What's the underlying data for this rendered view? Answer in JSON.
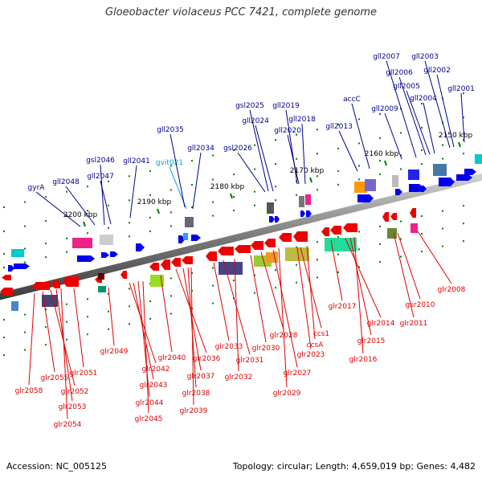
{
  "title": "Gloeobacter violaceus PCC 7421, complete genome",
  "footer": {
    "accession": "Accession: NC_005125",
    "summary": "Topology: circular; Length: 4,659,019 bp; Genes: 4,482"
  },
  "colors": {
    "forward_label": "#00008b",
    "reverse_label": "#e00000",
    "rna_label": "#00a0e0",
    "forward_gene": "#0000ee",
    "reverse_gene": "#ee0000",
    "tick": "#008000",
    "backbone": "#7a7a7a"
  },
  "scale": [
    {
      "label": "2200 kbp"
    },
    {
      "label": "2190 kbp"
    },
    {
      "label": "2180 kbp"
    },
    {
      "label": "2170 kbp"
    },
    {
      "label": "2160 kbp"
    },
    {
      "label": "2150 kbp"
    }
  ],
  "forward_genes": [
    "gyrA",
    "gll2048",
    "gsl2046",
    "gll2047",
    "gll2041",
    "gvit021",
    "gll2035",
    "gll2034",
    "gsl2026",
    "gsl2025",
    "gll2024",
    "gll2019",
    "gll2018",
    "gll2020",
    "gll2013",
    "accC",
    "gll2009",
    "gll2007",
    "gll2006",
    "gll2005",
    "gll2004",
    "gll2003",
    "gll2002",
    "gll2001"
  ],
  "reverse_genes": [
    "glr2058",
    "glr2055",
    "glr2052",
    "glr2053",
    "glr2054",
    "glr2051",
    "glr2049",
    "glr2042",
    "glr2043",
    "glr2044",
    "glr2045",
    "glr2040",
    "glr2036",
    "glr2037",
    "glr2038",
    "glr2039",
    "glr2033",
    "glr2031",
    "glr2032",
    "glr2030",
    "glr2028",
    "glr2027",
    "glr2029",
    "ccs1",
    "ccsA",
    "glr2023",
    "glr2017",
    "glr2014",
    "glr2015",
    "glr2016",
    "glr2011",
    "gsr2010",
    "glr2008"
  ]
}
